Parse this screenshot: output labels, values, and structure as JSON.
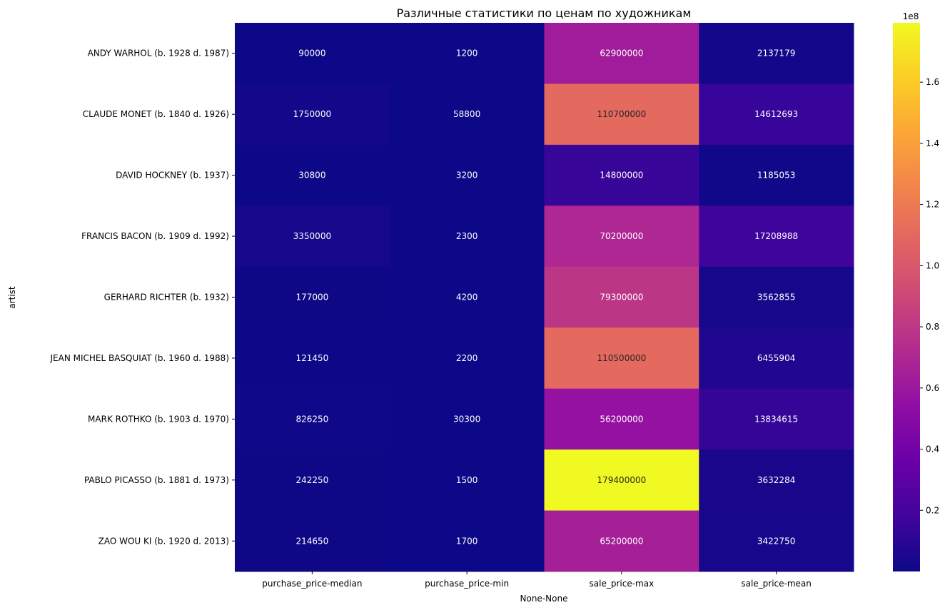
{
  "chart_data": {
    "type": "heatmap",
    "title": "Различные статистики по ценам по художникам",
    "xlabel": "None-None",
    "ylabel": "artist",
    "colormap": "plasma",
    "columns": [
      "purchase_price-median",
      "purchase_price-min",
      "sale_price-max",
      "sale_price-mean"
    ],
    "rows": [
      "ANDY WARHOL (b. 1928 d. 1987)",
      "CLAUDE MONET (b. 1840 d. 1926)",
      "DAVID HOCKNEY (b. 1937)",
      "FRANCIS BACON (b. 1909 d. 1992)",
      "GERHARD RICHTER (b. 1932)",
      "JEAN MICHEL BASQUIAT (b. 1960 d. 1988)",
      "MARK ROTHKO (b. 1903 d. 1970)",
      "PABLO PICASSO (b. 1881 d. 1973)",
      "ZAO WOU KI (b. 1920 d. 2013)"
    ],
    "values": [
      [
        90000,
        1200,
        62900000,
        2137179
      ],
      [
        1750000,
        58800,
        110700000,
        14612693
      ],
      [
        30800,
        3200,
        14800000,
        1185053
      ],
      [
        3350000,
        2300,
        70200000,
        17208988
      ],
      [
        177000,
        4200,
        79300000,
        3562855
      ],
      [
        121450,
        2200,
        110500000,
        6455904
      ],
      [
        826250,
        30300,
        56200000,
        13834615
      ],
      [
        242250,
        1500,
        179400000,
        3632284
      ],
      [
        214650,
        1700,
        65200000,
        3422750
      ]
    ],
    "colorbar": {
      "range": [
        1200,
        179400000
      ],
      "ticks": [
        20000000,
        40000000,
        60000000,
        80000000,
        100000000,
        120000000,
        140000000,
        160000000
      ],
      "tick_labels": [
        "0.2",
        "0.4",
        "0.6",
        "0.8",
        "1.0",
        "1.2",
        "1.4",
        "1.6"
      ],
      "offset_label": "1e8"
    }
  }
}
